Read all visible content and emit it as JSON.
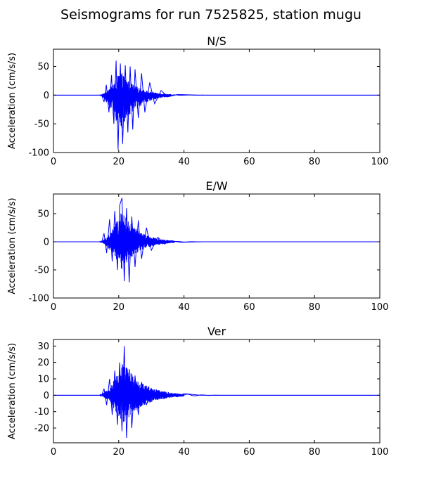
{
  "figure": {
    "title": "Seismograms for run 7525825, station mugu"
  },
  "chart_data": [
    {
      "type": "line",
      "title": "N/S",
      "xlabel": "",
      "ylabel": "Acceleration (cm/s/s)",
      "xlim": [
        0,
        100
      ],
      "ylim": [
        -100,
        80
      ],
      "xticks": [
        0,
        20,
        40,
        60,
        80,
        100
      ],
      "yticks": [
        -100,
        -50,
        0,
        50
      ],
      "color": "#0000ff",
      "grid": false,
      "envelope": {
        "onset": 15.0,
        "peak_time": 20.5,
        "decay_end": 36,
        "max_positive": 60,
        "max_negative": -95,
        "coda_amplitude": 0.5
      },
      "series": [
        {
          "x": [
            0,
            14.8,
            15.5,
            16.2,
            17.0,
            17.8,
            18.5,
            19.2,
            19.8,
            20.5,
            21.2,
            22.0,
            22.8,
            23.5,
            24.3,
            25.0,
            26.0,
            27.0,
            28.0,
            29.5,
            31.0,
            33.0,
            35.0,
            38.0,
            45.0,
            100
          ],
          "y": [
            0,
            0,
            -12,
            18,
            -30,
            35,
            -50,
            60,
            -95,
            55,
            -85,
            52,
            -65,
            50,
            -60,
            45,
            -40,
            38,
            -30,
            22,
            -15,
            8,
            -3,
            1,
            0,
            0
          ]
        }
      ]
    },
    {
      "type": "line",
      "title": "E/W",
      "xlabel": "",
      "ylabel": "Acceleration (cm/s/s)",
      "xlim": [
        0,
        100
      ],
      "ylim": [
        -100,
        85
      ],
      "xticks": [
        0,
        20,
        40,
        60,
        80,
        100
      ],
      "yticks": [
        -100,
        -50,
        0,
        50
      ],
      "color": "#0000ff",
      "grid": false,
      "envelope": {
        "onset": 15.0,
        "peak_time": 21.0,
        "decay_end": 37,
        "max_positive": 78,
        "max_negative": -72,
        "coda_amplitude": 0.8
      },
      "series": [
        {
          "x": [
            0,
            14.8,
            15.5,
            16.3,
            17.2,
            18.0,
            18.8,
            19.6,
            20.3,
            21.0,
            21.7,
            22.4,
            23.2,
            24.0,
            25.0,
            26.0,
            27.0,
            28.5,
            30.0,
            32.0,
            34.0,
            36.0,
            39.0,
            45.0,
            100
          ],
          "y": [
            0,
            0,
            15,
            -20,
            40,
            -35,
            55,
            -50,
            65,
            78,
            -70,
            60,
            -72,
            45,
            -45,
            38,
            -30,
            25,
            -15,
            8,
            -4,
            2,
            -1,
            0,
            0
          ]
        }
      ]
    },
    {
      "type": "line",
      "title": "Ver",
      "xlabel": "",
      "ylabel": "Acceleration (cm/s/s)",
      "xlim": [
        0,
        100
      ],
      "ylim": [
        -29,
        34
      ],
      "xticks": [
        0,
        20,
        40,
        60,
        80,
        100
      ],
      "yticks": [
        -20,
        -10,
        0,
        10,
        20,
        30
      ],
      "color": "#0000ff",
      "grid": false,
      "envelope": {
        "onset": 15.0,
        "peak_time": 21.5,
        "decay_end": 40,
        "max_positive": 30,
        "max_negative": -26,
        "coda_amplitude": 0.8
      },
      "series": [
        {
          "x": [
            0,
            14.8,
            15.5,
            16.3,
            17.2,
            18.0,
            18.8,
            19.6,
            20.3,
            21.0,
            21.7,
            22.4,
            23.2,
            24.0,
            25.0,
            26.0,
            27.0,
            28.5,
            30.0,
            32.0,
            34.0,
            36.0,
            38.0,
            40.0,
            45.0,
            100
          ],
          "y": [
            0,
            0,
            4,
            -6,
            10,
            -12,
            15,
            -18,
            20,
            -22,
            30,
            -26,
            16,
            -20,
            12,
            -12,
            8,
            -6,
            4,
            -2,
            -2,
            1,
            -1,
            1,
            0,
            0
          ]
        }
      ]
    }
  ]
}
